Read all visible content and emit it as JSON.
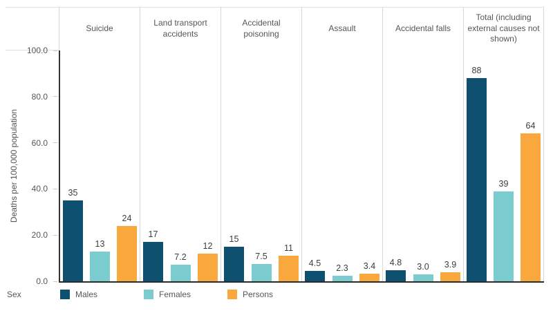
{
  "chart_data": {
    "type": "bar",
    "title": "",
    "ylabel": "Deaths per 100,000 population",
    "ylim": [
      0,
      100
    ],
    "grid": false,
    "yticks": [
      {
        "value": 100,
        "label": "100.0"
      },
      {
        "value": 80,
        "label": "80.0"
      },
      {
        "value": 60,
        "label": "60.0"
      },
      {
        "value": 40,
        "label": "40.0"
      },
      {
        "value": 20,
        "label": "20.0"
      },
      {
        "value": 0,
        "label": "0.0"
      }
    ],
    "categories": [
      "Suicide",
      "Land transport accidents",
      "Accidental poisoning",
      "Assault",
      "Accidental falls",
      "Total (including external causes not shown)"
    ],
    "series": [
      {
        "name": "Males",
        "color": "#0d506f",
        "values": [
          35,
          17,
          15,
          4.5,
          4.8,
          88
        ],
        "labels": [
          "35",
          "17",
          "15",
          "4.5",
          "4.8",
          "88"
        ]
      },
      {
        "name": "Females",
        "color": "#7bcccf",
        "values": [
          13,
          7.2,
          7.5,
          2.3,
          3.0,
          39
        ],
        "labels": [
          "13",
          "7.2",
          "7.5",
          "2.3",
          "3.0",
          "39"
        ]
      },
      {
        "name": "Persons",
        "color": "#f9a83e",
        "values": [
          24,
          12,
          11,
          3.4,
          3.9,
          64
        ],
        "labels": [
          "24",
          "12",
          "11",
          "3.4",
          "3.9",
          "64"
        ]
      }
    ],
    "legend_title": "Sex",
    "legend_position": "bottom"
  }
}
